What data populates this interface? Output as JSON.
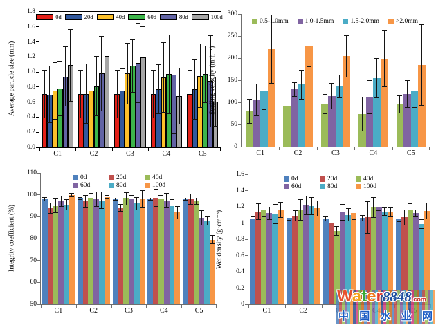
{
  "figure": {
    "background": "#ffffff"
  },
  "chart_data": [
    {
      "type": "bar",
      "title": "",
      "ylabel": "Average particle size (mm)",
      "xlabel": "",
      "ylim": [
        0,
        1.8
      ],
      "yticks": [
        "0.0",
        "0.2",
        "0.4",
        "0.6",
        "0.8",
        "1.0",
        "1.2",
        "1.4",
        "1.6",
        "1.8"
      ],
      "categories": [
        "C1",
        "C2",
        "C3",
        "C4",
        "C5"
      ],
      "legend_position": "top-inside-row",
      "grid": false,
      "series": [
        {
          "name": "0d",
          "color": "#e32119",
          "values": [
            0.71,
            0.71,
            0.71,
            0.71,
            0.71
          ],
          "errors": [
            0.32,
            0.32,
            0.32,
            0.32,
            0.32
          ]
        },
        {
          "name": "20d",
          "color": "#31589c",
          "values": [
            0.7,
            0.71,
            0.75,
            0.77,
            0.77
          ],
          "errors": [
            0.38,
            0.4,
            0.3,
            0.33,
            0.4
          ]
        },
        {
          "name": "40d",
          "color": "#fcc02a",
          "values": [
            0.75,
            0.75,
            0.98,
            0.93,
            0.95
          ],
          "errors": [
            0.38,
            0.33,
            0.41,
            0.47,
            0.43
          ]
        },
        {
          "name": "60d",
          "color": "#3db54a",
          "values": [
            0.78,
            0.81,
            1.08,
            0.97,
            0.97
          ],
          "errors": [
            0.37,
            0.4,
            0.35,
            0.53,
            0.38
          ]
        },
        {
          "name": "80d",
          "color": "#6163a4",
          "values": [
            0.94,
            0.98,
            1.12,
            0.96,
            0.88
          ],
          "errors": [
            0.4,
            0.5,
            0.53,
            0.79,
            0.61
          ]
        },
        {
          "name": "100d",
          "color": "#a6a6a6",
          "values": [
            1.09,
            1.21,
            1.19,
            0.68,
            0.61
          ],
          "errors": [
            0.48,
            0.52,
            0.42,
            0.38,
            0.33
          ]
        }
      ]
    },
    {
      "type": "bar",
      "title": "",
      "ylabel": "Settling velocity  (m·h⁻¹)",
      "xlabel": "",
      "ylim": [
        0,
        300
      ],
      "yticks": [
        "0",
        "50",
        "100",
        "150",
        "200",
        "250",
        "300"
      ],
      "categories": [
        "C1",
        "C2",
        "C3",
        "C4",
        "C5"
      ],
      "legend_position": "top-inside-row",
      "grid": false,
      "series": [
        {
          "name": "0.5-1.0mm",
          "color": "#9bbb59",
          "values": [
            80,
            91,
            96,
            74,
            95
          ],
          "errors": [
            28,
            16,
            23,
            39,
            20
          ]
        },
        {
          "name": "1.0-1.5mm",
          "color": "#8064a2",
          "values": [
            105,
            129,
            114,
            112,
            119
          ],
          "errors": [
            37,
            16,
            30,
            38,
            31
          ]
        },
        {
          "name": "1.5-2.0mm",
          "color": "#4bacc6",
          "values": [
            125,
            140,
            136,
            155,
            127
          ],
          "errors": [
            42,
            33,
            27,
            45,
            40
          ]
        },
        {
          "name": ">2.0mm",
          "color": "#f79646",
          "values": [
            220,
            226,
            204,
            198,
            184
          ],
          "errors": [
            78,
            47,
            48,
            64,
            92
          ]
        }
      ]
    },
    {
      "type": "bar",
      "title": "",
      "ylabel": "Integrity coefficient (%)",
      "xlabel": "",
      "ylim": [
        50,
        110
      ],
      "yticks": [
        "50",
        "60",
        "70",
        "80",
        "90",
        "100",
        "110"
      ],
      "categories": [
        "C1",
        "C2",
        "C3",
        "C4",
        "C5"
      ],
      "legend_position": "top-inside-grid",
      "grid": false,
      "series": [
        {
          "name": "0d",
          "color": "#4f81bd",
          "values": [
            98,
            98.3,
            98,
            98,
            98
          ],
          "errors": [
            0.8,
            0.5,
            0.6,
            0.7,
            0.7
          ]
        },
        {
          "name": "20d",
          "color": "#c0504d",
          "values": [
            94,
            97,
            94,
            98.5,
            98
          ],
          "errors": [
            2.5,
            3,
            1.8,
            4,
            2.5
          ]
        },
        {
          "name": "40d",
          "color": "#9bbb59",
          "values": [
            95,
            98.5,
            98.3,
            98,
            97
          ],
          "errors": [
            3.3,
            2.5,
            3,
            2,
            1.5
          ]
        },
        {
          "name": "60d",
          "color": "#8064a2",
          "values": [
            97,
            98,
            98,
            97.5,
            89.5
          ],
          "errors": [
            2.5,
            3.5,
            2,
            3.5,
            3.5
          ]
        },
        {
          "name": "80d",
          "color": "#4bacc6",
          "values": [
            95.5,
            97.5,
            96,
            95,
            88
          ],
          "errors": [
            2.5,
            4,
            3,
            3,
            2
          ]
        },
        {
          "name": "100d",
          "color": "#f79646",
          "values": [
            100,
            99,
            98,
            92,
            79.5
          ],
          "errors": [
            1,
            1,
            4,
            3,
            2
          ]
        }
      ]
    },
    {
      "type": "bar",
      "title": "",
      "ylabel": "Wet density (g·cm⁻³)",
      "xlabel": "",
      "ylim": [
        0,
        1.6
      ],
      "yticks": [
        "0",
        "0.2",
        "0.4",
        "0.6",
        "0.8",
        "1",
        "1.2",
        "1.4",
        "1.6"
      ],
      "categories": [
        "C1",
        "C2",
        "C3",
        "C4",
        "C5"
      ],
      "legend_position": "top-inside-grid",
      "grid": false,
      "series": [
        {
          "name": "0d",
          "color": "#4f81bd",
          "values": [
            1.05,
            1.06,
            1.05,
            1.06,
            1.05
          ],
          "errors": [
            0.03,
            0.03,
            0.03,
            0.04,
            0.04
          ]
        },
        {
          "name": "20d",
          "color": "#c0504d",
          "values": [
            1.14,
            1.09,
            1.0,
            1.07,
            1.07
          ],
          "errors": [
            0.1,
            0.07,
            0.09,
            0.2,
            0.1
          ]
        },
        {
          "name": "40d",
          "color": "#9bbb59",
          "values": [
            1.16,
            1.16,
            0.9,
            1.19,
            1.16
          ],
          "errors": [
            0.09,
            0.13,
            0.06,
            0.13,
            0.08
          ]
        },
        {
          "name": "60d",
          "color": "#8064a2",
          "values": [
            1.12,
            1.22,
            1.13,
            1.2,
            1.12
          ],
          "errors": [
            0.08,
            0.12,
            0.1,
            0.05,
            0.05
          ]
        },
        {
          "name": "80d",
          "color": "#4bacc6",
          "values": [
            1.11,
            1.21,
            1.1,
            1.14,
            0.99
          ],
          "errors": [
            0.12,
            0.11,
            0.08,
            0.05,
            0.06
          ]
        },
        {
          "name": "100d",
          "color": "#f79646",
          "values": [
            1.16,
            1.18,
            1.12,
            1.13,
            1.15
          ],
          "errors": [
            0.1,
            0.1,
            0.08,
            0.06,
            0.1
          ]
        }
      ]
    }
  ],
  "watermark": {
    "brand_letters": [
      {
        "ch": "W",
        "color": "#e8522e"
      },
      {
        "ch": "a",
        "color": "#f5a21b"
      },
      {
        "ch": "t",
        "color": "#3aa935"
      },
      {
        "ch": "e",
        "color": "#f07818"
      },
      {
        "ch": "r",
        "color": "#e03a2f"
      }
    ],
    "number": "8848",
    "domain": ".com",
    "line2": "中国水业网",
    "stripe_colors": [
      "#4f81bd",
      "#c0504d",
      "#9bbb59",
      "#8064a2",
      "#4bacc6",
      "#f79646",
      "#2e4d8e",
      "#d13b7a",
      "#7aa23c",
      "#c86a1f"
    ]
  }
}
